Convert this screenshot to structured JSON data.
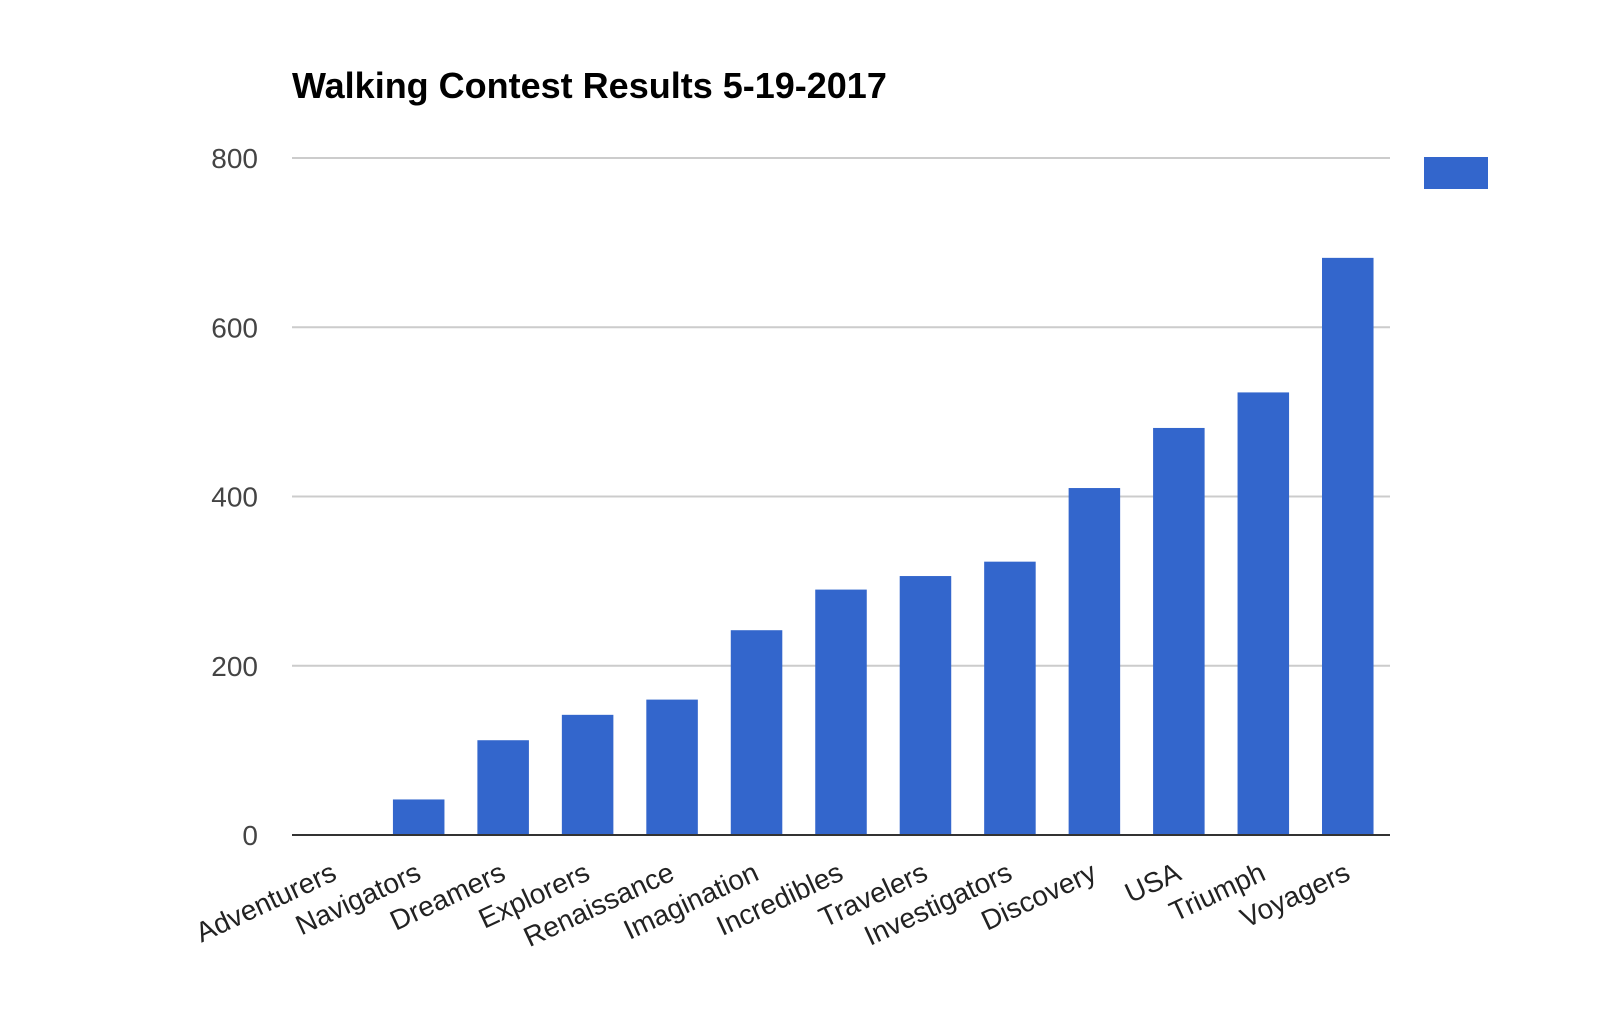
{
  "chart_data": {
    "type": "bar",
    "title": "Walking Contest Results 5-19-2017",
    "xlabel": "",
    "ylabel": "",
    "categories": [
      "Adventurers",
      "Navigators",
      "Dreamers",
      "Explorers",
      "Renaissance",
      "Imagination",
      "Incredibles",
      "Travelers",
      "Investigators",
      "Discovery",
      "USA",
      "Triumph",
      "Voyagers"
    ],
    "series": [
      {
        "values": [
          0,
          42,
          112,
          142,
          160,
          242,
          290,
          306,
          323,
          410,
          481,
          523,
          682
        ]
      }
    ],
    "ylim": [
      0,
      800
    ],
    "yticks": [
      0,
      200,
      400,
      600,
      800
    ],
    "grid": true,
    "legend": "top-right",
    "colors": {
      "bar": "#3366cc",
      "grid": "#cccccc",
      "axis": "#333333"
    }
  }
}
